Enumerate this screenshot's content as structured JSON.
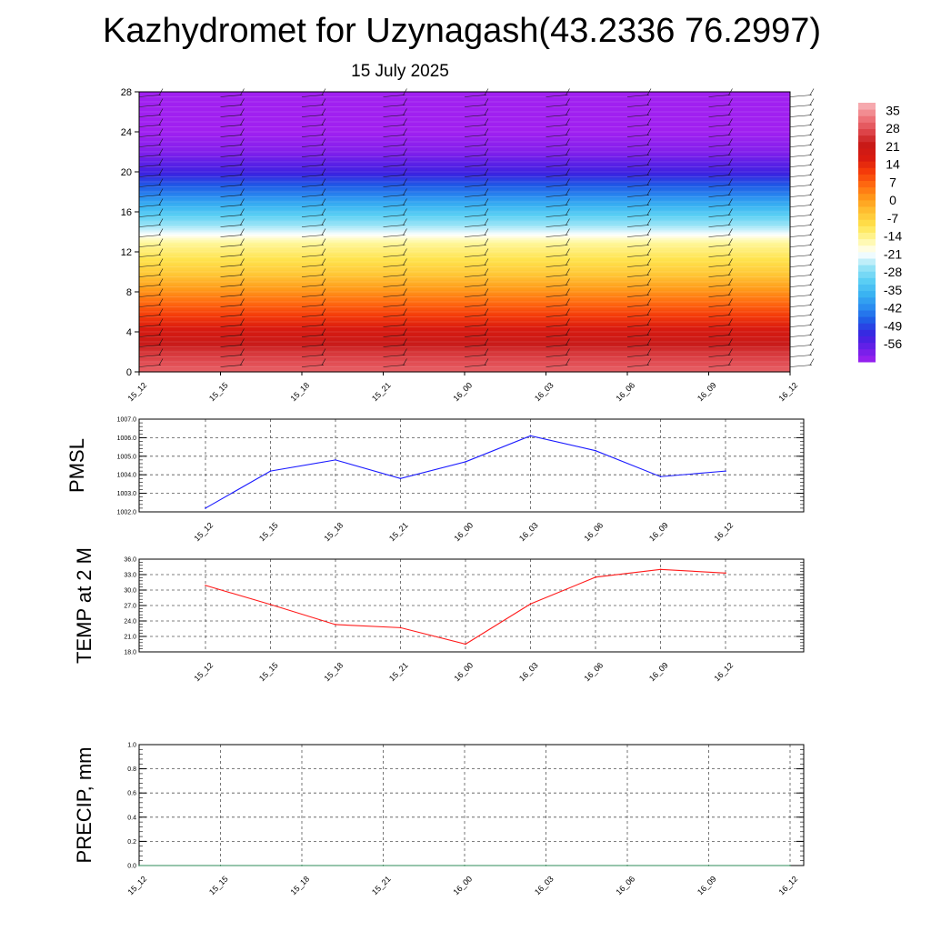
{
  "header": {
    "title": "Kazhydromet for Uzynagash(43.2336 76.2997)",
    "subtitle": "15 July 2025"
  },
  "colors": {
    "pmsl_line": "#1a1aff",
    "temp_line": "#ff1a1a",
    "precip_line": "#2e8b57",
    "colormap": [
      "#a020f0",
      "#6a1fe8",
      "#3a22e0",
      "#1f5ae6",
      "#2a8cf0",
      "#3ab3f2",
      "#5cd0f4",
      "#9ae4f6",
      "#ffffff",
      "#fff8a0",
      "#ffe34d",
      "#ffc233",
      "#ff9a1a",
      "#ff6a10",
      "#f43a0a",
      "#d81a10",
      "#c81a18",
      "#e04a50",
      "#f07a80",
      "#f8b8bc"
    ]
  },
  "chart_data": [
    {
      "type": "heatmap",
      "name": "upper-air cross-section",
      "x": [
        "15_12",
        "15_15",
        "15_18",
        "15_21",
        "16_00",
        "16_03",
        "16_06",
        "16_09",
        "16_12"
      ],
      "y_ticks": [
        0,
        4,
        8,
        12,
        16,
        20,
        24,
        28
      ],
      "ylim": [
        0,
        28
      ],
      "wind_barbs": "yes",
      "colorbar": {
        "labels": [
          "35",
          "28",
          "21",
          "14",
          "7",
          "0",
          "-7",
          "-14",
          "-21",
          "-28",
          "-35",
          "-42",
          "-49",
          "-56"
        ],
        "range": [
          -63,
          38
        ],
        "position": "right"
      },
      "temperature_profile": {
        "z": [
          0,
          2,
          4,
          6,
          8,
          10,
          12,
          13,
          14,
          16,
          18,
          20,
          22,
          24,
          28
        ],
        "t": [
          30,
          25,
          18,
          10,
          2,
          -6,
          -12,
          -15,
          -22,
          -33,
          -44,
          -53,
          -60,
          -63,
          -63
        ]
      }
    },
    {
      "type": "line",
      "name": "PMSL",
      "ylabel": "PMSL",
      "categories": [
        "15_12",
        "15_15",
        "15_18",
        "15_21",
        "16_00",
        "16_03",
        "16_06",
        "16_09",
        "16_12"
      ],
      "values": [
        1002.2,
        1004.2,
        1004.8,
        1003.8,
        1004.7,
        1006.1,
        1005.3,
        1003.9,
        1004.2
      ],
      "ylim": [
        1002.0,
        1007.0
      ],
      "yticks": [
        "1002.0",
        "1003.0",
        "1004.0",
        "1005.0",
        "1006.0",
        "1007.0"
      ],
      "grid": true
    },
    {
      "type": "line",
      "name": "TEMP",
      "ylabel": "TEMP at 2 M",
      "categories": [
        "15_12",
        "15_15",
        "15_18",
        "15_21",
        "16_00",
        "16_03",
        "16_06",
        "16_09",
        "16_12"
      ],
      "values": [
        30.9,
        27.2,
        23.3,
        22.7,
        19.5,
        27.3,
        32.5,
        34.0,
        33.3
      ],
      "ylim": [
        18.0,
        36.0
      ],
      "yticks": [
        "18.0",
        "21.0",
        "24.0",
        "27.0",
        "30.0",
        "33.0",
        "36.0"
      ],
      "grid": true
    },
    {
      "type": "line",
      "name": "PRECIP",
      "ylabel": "PRECIP, mm",
      "categories": [
        "15_12",
        "15_15",
        "15_18",
        "15_21",
        "16_00",
        "16_03",
        "16_06",
        "16_09",
        "16_12"
      ],
      "values": [
        0,
        0,
        0,
        0,
        0,
        0,
        0,
        0,
        0
      ],
      "ylim": [
        0.0,
        1.0
      ],
      "yticks": [
        "0.0",
        "0.2",
        "0.4",
        "0.6",
        "0.8",
        "1.0"
      ],
      "grid": true
    }
  ]
}
